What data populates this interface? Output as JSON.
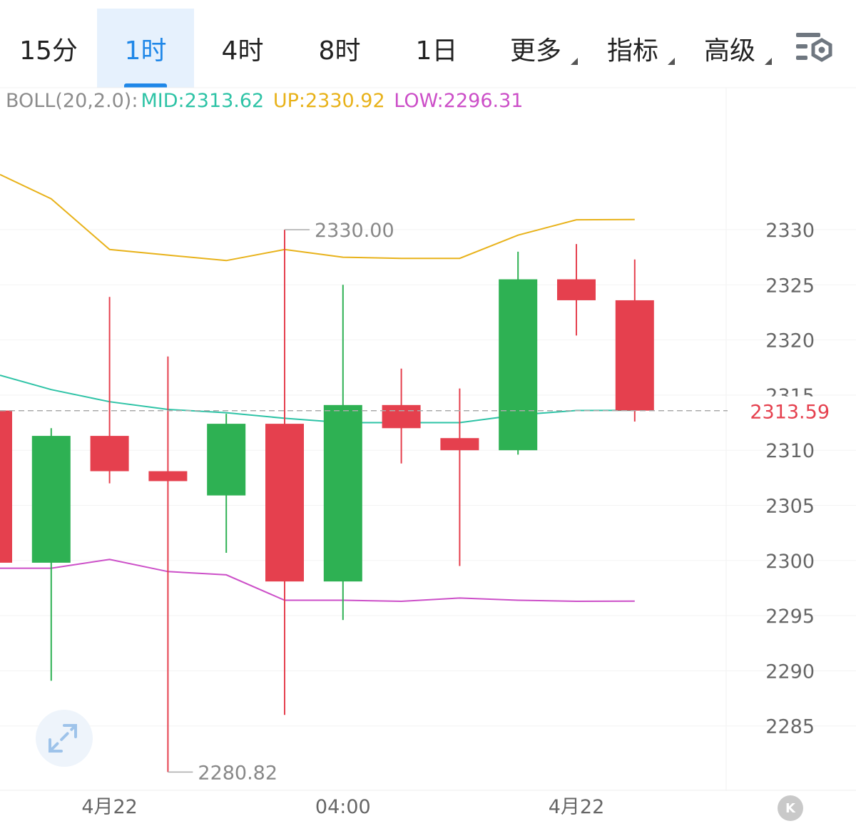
{
  "tabs": [
    {
      "label": "15分",
      "active": false
    },
    {
      "label": "1时",
      "active": true
    },
    {
      "label": "4时",
      "active": false
    },
    {
      "label": "8时",
      "active": false
    },
    {
      "label": "1日",
      "active": false
    },
    {
      "label": "更多",
      "active": false,
      "dropdown": true
    },
    {
      "label": "指标",
      "active": false,
      "dropdown": true
    },
    {
      "label": "高级",
      "active": false,
      "dropdown": true
    }
  ],
  "settings_icon": "chart-settings-icon",
  "legend": {
    "name": "BOLL(20,2.0):",
    "mid": "MID:2313.62",
    "up": "UP:2330.92",
    "low": "LOW:2296.31"
  },
  "colors": {
    "up_candle": "#2eb153",
    "down_candle": "#e5404e",
    "boll_mid": "#2ec3a6",
    "boll_up": "#e8b21a",
    "boll_low": "#cc4fc8",
    "legend_label": "#8c8c8c",
    "current_price": "#e5404e",
    "active_tab": "#1f87e8"
  },
  "k_button_label": "K",
  "expand_icon": "expand-arrows-icon",
  "chart_data": {
    "type": "candlestick",
    "y_axis": {
      "ticks": [
        2330,
        2325,
        2320,
        2315,
        2310,
        2305,
        2300,
        2295,
        2290,
        2285
      ],
      "range": [
        2279,
        2340
      ]
    },
    "x_axis_labels": [
      "4月22",
      "04:00",
      "4月22"
    ],
    "current_price": "2313.59",
    "max_marker": {
      "label": "2330.00",
      "value": 2330.0
    },
    "min_marker": {
      "label": "2280.82",
      "value": 2280.82
    },
    "candles": [
      {
        "open": 2313.6,
        "close": 2299.8,
        "high": 2314.0,
        "low": 2299.5
      },
      {
        "open": 2299.8,
        "close": 2311.3,
        "high": 2312.0,
        "low": 2289.1
      },
      {
        "open": 2311.3,
        "close": 2308.1,
        "high": 2323.9,
        "low": 2307.0
      },
      {
        "open": 2308.1,
        "close": 2307.2,
        "high": 2318.5,
        "low": 2280.82
      },
      {
        "open": 2305.9,
        "close": 2312.4,
        "high": 2313.3,
        "low": 2300.7
      },
      {
        "open": 2312.4,
        "close": 2298.1,
        "high": 2330.0,
        "low": 2286.0
      },
      {
        "open": 2298.1,
        "close": 2314.1,
        "high": 2325.0,
        "low": 2294.6
      },
      {
        "open": 2314.1,
        "close": 2312.0,
        "high": 2317.4,
        "low": 2308.8
      },
      {
        "open": 2311.1,
        "close": 2310.0,
        "high": 2315.6,
        "low": 2299.5
      },
      {
        "open": 2310.0,
        "close": 2325.5,
        "high": 2328.0,
        "low": 2309.6
      },
      {
        "open": 2325.5,
        "close": 2323.6,
        "high": 2328.7,
        "low": 2320.4
      },
      {
        "open": 2323.6,
        "close": 2313.59,
        "high": 2327.3,
        "low": 2312.6
      }
    ],
    "series": [
      {
        "name": "UP",
        "values": [
          2335.0,
          2332.8,
          2328.2,
          2327.7,
          2327.2,
          2328.2,
          2327.5,
          2327.4,
          2327.4,
          2329.5,
          2330.9,
          2330.92
        ]
      },
      {
        "name": "MID",
        "values": [
          2316.8,
          2315.5,
          2314.4,
          2313.7,
          2313.4,
          2312.9,
          2312.5,
          2312.5,
          2312.5,
          2313.2,
          2313.6,
          2313.62
        ]
      },
      {
        "name": "LOW",
        "values": [
          2299.3,
          2299.3,
          2300.1,
          2299.0,
          2298.7,
          2296.4,
          2296.4,
          2296.3,
          2296.6,
          2296.4,
          2296.3,
          2296.31
        ]
      }
    ]
  }
}
